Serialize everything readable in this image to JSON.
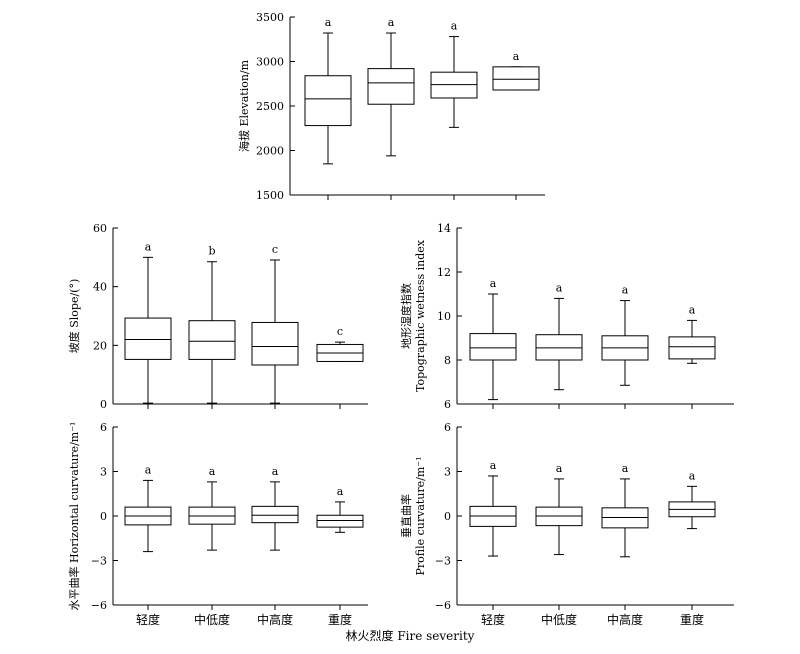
{
  "figure": {
    "x_title": "林火烈度 Fire severity",
    "categories": [
      "轻度",
      "中低度",
      "中高度",
      "重度"
    ]
  },
  "chart_data": [
    {
      "type": "box",
      "ylabel": "海拔 Elevation/m",
      "ylim": [
        1500,
        3500
      ],
      "yticks": [
        "1500",
        "2000",
        "2500",
        "3000",
        "3500"
      ],
      "show_category_labels": false,
      "categories": [
        "轻度",
        "中低度",
        "中高度",
        "重度"
      ],
      "boxes": [
        {
          "min": 1850,
          "q1": 2280,
          "median": 2580,
          "q3": 2840,
          "max": 3320,
          "sig": "a"
        },
        {
          "min": 1940,
          "q1": 2520,
          "median": 2760,
          "q3": 2920,
          "max": 3320,
          "sig": "a"
        },
        {
          "min": 2260,
          "q1": 2590,
          "median": 2740,
          "q3": 2880,
          "max": 3280,
          "sig": "a"
        },
        {
          "min": 2680,
          "q1": 2680,
          "median": 2800,
          "q3": 2940,
          "max": 2940,
          "sig": "a"
        }
      ]
    },
    {
      "type": "box",
      "ylabel": "坡度 Slope/(°)",
      "ylim": [
        0,
        60
      ],
      "yticks": [
        "0",
        "20",
        "40",
        "60"
      ],
      "show_category_labels": false,
      "categories": [
        "轻度",
        "中低度",
        "中高度",
        "重度"
      ],
      "boxes": [
        {
          "min": 0.3,
          "q1": 15.2,
          "median": 22,
          "q3": 29.3,
          "max": 50,
          "sig": "a"
        },
        {
          "min": 0.3,
          "q1": 15.2,
          "median": 21.4,
          "q3": 28.4,
          "max": 48.5,
          "sig": "b"
        },
        {
          "min": 0.3,
          "q1": 13.3,
          "median": 19.6,
          "q3": 27.8,
          "max": 49.1,
          "sig": "c"
        },
        {
          "min": 14.5,
          "q1": 14.5,
          "median": 17.4,
          "q3": 20.3,
          "max": 21.1,
          "sig": "c"
        }
      ]
    },
    {
      "type": "box",
      "ylabel": "地形湿度指数 Topographic wetness index",
      "ylim": [
        6,
        14
      ],
      "yticks": [
        "6",
        "8",
        "10",
        "12",
        "14"
      ],
      "show_category_labels": false,
      "categories": [
        "轻度",
        "中低度",
        "中高度",
        "重度"
      ],
      "boxes": [
        {
          "min": 6.2,
          "q1": 8.0,
          "median": 8.55,
          "q3": 9.2,
          "max": 11.0,
          "sig": "a"
        },
        {
          "min": 6.65,
          "q1": 8.0,
          "median": 8.55,
          "q3": 9.15,
          "max": 10.8,
          "sig": "a"
        },
        {
          "min": 6.85,
          "q1": 8.0,
          "median": 8.55,
          "q3": 9.1,
          "max": 10.7,
          "sig": "a"
        },
        {
          "min": 7.85,
          "q1": 8.05,
          "median": 8.6,
          "q3": 9.05,
          "max": 9.8,
          "sig": "a"
        }
      ]
    },
    {
      "type": "box",
      "ylabel": "水平曲率 Horizontal curvature/m⁻¹",
      "ylim": [
        -6,
        6
      ],
      "yticks": [
        "−6",
        "−3",
        "0",
        "3",
        "6"
      ],
      "show_category_labels": true,
      "categories": [
        "轻度",
        "中低度",
        "中高度",
        "重度"
      ],
      "boxes": [
        {
          "min": -2.4,
          "q1": -0.6,
          "median": 0,
          "q3": 0.6,
          "max": 2.4,
          "sig": "a"
        },
        {
          "min": -2.3,
          "q1": -0.55,
          "median": 0,
          "q3": 0.6,
          "max": 2.3,
          "sig": "a"
        },
        {
          "min": -2.3,
          "q1": -0.45,
          "median": 0.05,
          "q3": 0.65,
          "max": 2.3,
          "sig": "a"
        },
        {
          "min": -1.1,
          "q1": -0.75,
          "median": -0.3,
          "q3": 0.05,
          "max": 0.95,
          "sig": "a"
        }
      ]
    },
    {
      "type": "box",
      "ylabel": "垂直曲率 Profile curvature/m⁻¹",
      "ylim": [
        -6,
        6
      ],
      "yticks": [
        "−6",
        "−3",
        "0",
        "3",
        "6"
      ],
      "show_category_labels": true,
      "categories": [
        "轻度",
        "中低度",
        "中高度",
        "重度"
      ],
      "boxes": [
        {
          "min": -2.7,
          "q1": -0.7,
          "median": 0,
          "q3": 0.65,
          "max": 2.7,
          "sig": "a"
        },
        {
          "min": -2.6,
          "q1": -0.65,
          "median": 0,
          "q3": 0.6,
          "max": 2.5,
          "sig": "a"
        },
        {
          "min": -2.75,
          "q1": -0.8,
          "median": -0.1,
          "q3": 0.55,
          "max": 2.5,
          "sig": "a"
        },
        {
          "min": -0.85,
          "q1": -0.05,
          "median": 0.45,
          "q3": 0.95,
          "max": 2.0,
          "sig": "a"
        }
      ]
    }
  ]
}
